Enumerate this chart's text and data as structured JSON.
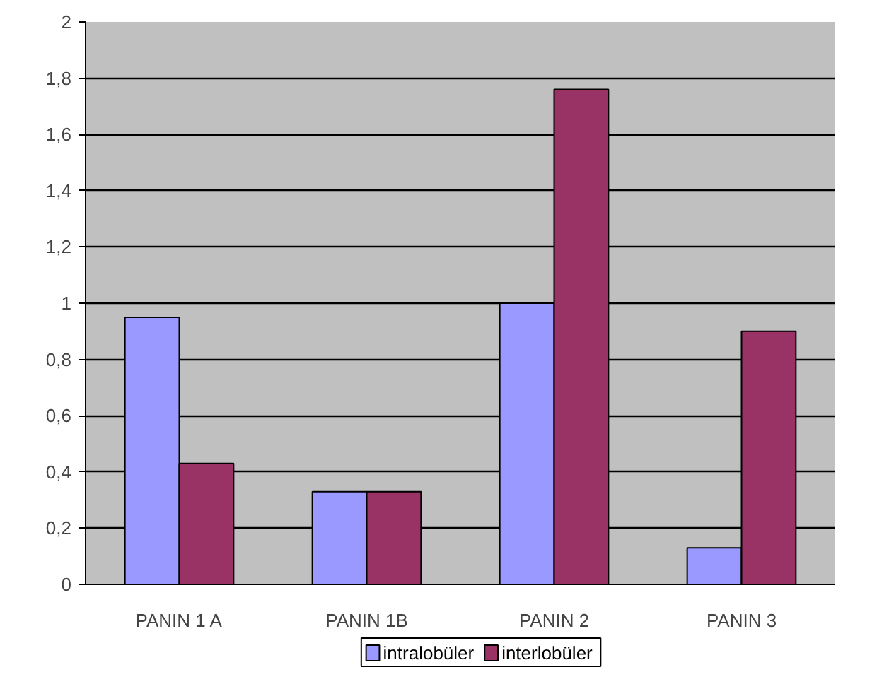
{
  "chart_data": {
    "type": "bar",
    "categories": [
      "PANIN 1 A",
      "PANIN 1B",
      "PANIN 2",
      "PANIN 3"
    ],
    "series": [
      {
        "name": "intralobüler",
        "color": "#9999ff",
        "values": [
          0.95,
          0.33,
          1.0,
          0.13
        ]
      },
      {
        "name": "interlobüler",
        "color": "#993366",
        "values": [
          0.43,
          0.33,
          1.76,
          0.9
        ]
      }
    ],
    "ylim": [
      0,
      2
    ],
    "yticks": [
      0,
      {
        "value": 0.2,
        "label": "0,2"
      },
      {
        "value": 0.4,
        "label": "0,4"
      },
      {
        "value": 0.6,
        "label": "0,6"
      },
      {
        "value": 0.8,
        "label": "0,8"
      },
      1,
      {
        "value": 1.2,
        "label": "1,2"
      },
      {
        "value": 1.4,
        "label": "1,4"
      },
      {
        "value": 1.6,
        "label": "1,6"
      },
      {
        "value": 1.8,
        "label": "1,8"
      },
      2
    ],
    "grid": "y",
    "legend": "bottom"
  }
}
